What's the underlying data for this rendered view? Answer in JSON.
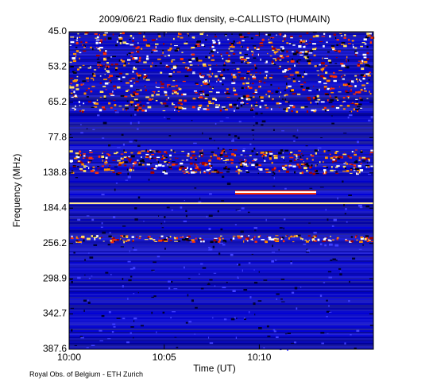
{
  "chart_data": {
    "type": "spectrogram",
    "title": "2009/06/21  Radio flux density, e-CALLISTO (HUMAIN)",
    "x_label": "Time (UT)",
    "y_label": "Frequency (MHz)",
    "xlim": [
      "10:00",
      "10:16"
    ],
    "xticks": [
      "10:00",
      "10:05",
      "10:10"
    ],
    "yticks": [
      {
        "value": 45,
        "label": "45.0"
      },
      53.2,
      65.2,
      77.8,
      138.8,
      184.4,
      256.2,
      298.9,
      342.7,
      387.6
    ],
    "footer": "Royal Obs. of Belgium - ETH Zurich"
  }
}
